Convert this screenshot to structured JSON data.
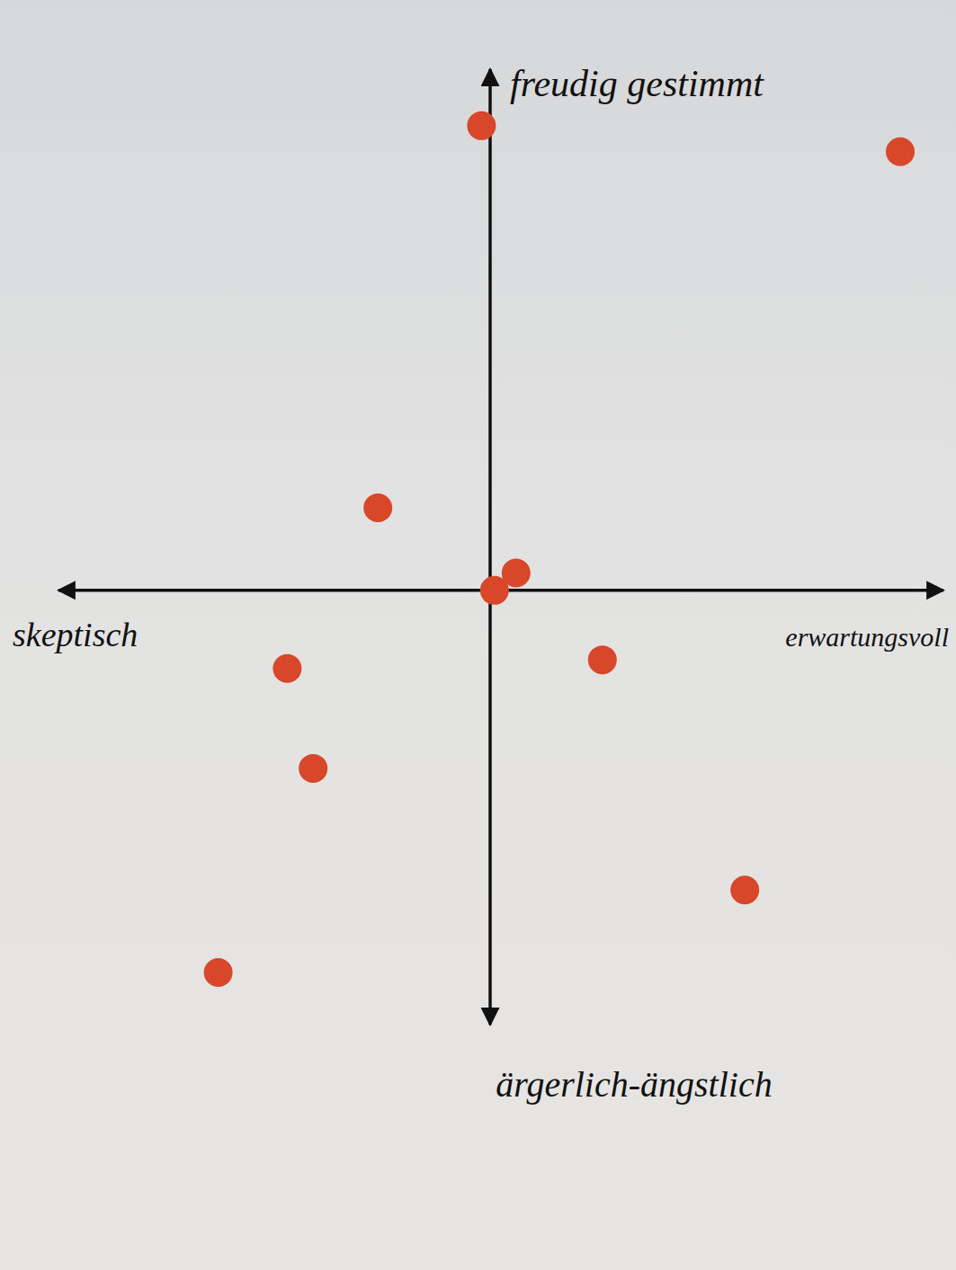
{
  "chart_data": {
    "type": "scatter",
    "labels": {
      "top": "freudig gestimmt",
      "bottom": "ärgerlich-ängstlich",
      "left": "skeptisch",
      "right": "erwartungsvoll"
    },
    "x": [
      -0.2,
      9.5,
      -2.6,
      0.6,
      0.1,
      -4.7,
      2.6,
      -4.1,
      5.9,
      -6.3
    ],
    "values": [
      10.7,
      10.1,
      1.9,
      0.4,
      0,
      -1.8,
      -1.6,
      -4.1,
      -6.9,
      -8.8
    ],
    "color": "#d9472b",
    "marker": "circle",
    "xlim": [
      -10,
      10.5
    ],
    "ylim": [
      -10,
      12
    ],
    "tick_labels": false,
    "grid": false
  }
}
